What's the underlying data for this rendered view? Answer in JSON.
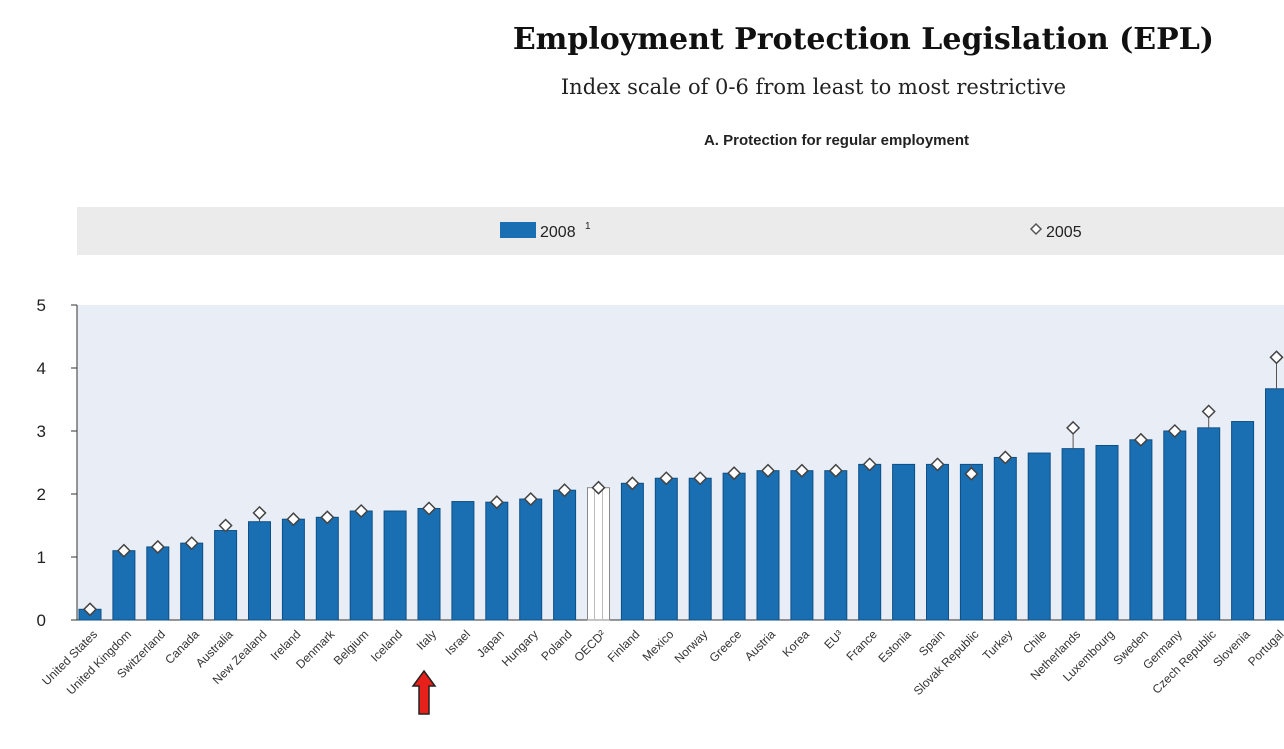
{
  "title": "Employment Protection Legislation (EPL)",
  "subtitle": "Index scale of 0-6 from least to most restrictive",
  "colors": {
    "bar": "#1a6fb3",
    "bar_stroke": "#0d4f86",
    "oecd_bar": "#ffffff",
    "plot_bg": "#e9eef6",
    "legend_bg": "#ebebeb",
    "arrow": "#e8201a"
  },
  "chart_data": {
    "type": "bar",
    "title": "A. Protection for regular employment",
    "legend": {
      "placement": "top",
      "items": [
        {
          "label": "2008",
          "sup": "1",
          "marker": "bar"
        },
        {
          "label": "2005",
          "sup": "",
          "marker": "diamond"
        }
      ]
    },
    "categories": [
      "United States",
      "United Kingdom",
      "Switzerland",
      "Canada",
      "Australia",
      "New Zealand",
      "Ireland",
      "Denmark",
      "Belgium",
      "Iceland",
      "Italy",
      "Israel",
      "Japan",
      "Hungary",
      "Poland",
      "OECD²",
      "Finland",
      "Mexico",
      "Norway",
      "Greece",
      "Austria",
      "Korea",
      "EU³",
      "France",
      "Estonia",
      "Spain",
      "Slovak Republic",
      "Turkey",
      "Chile",
      "Netherlands",
      "Luxembourg",
      "Sweden",
      "Germany",
      "Czech Republic",
      "Slovenia",
      "Portugal"
    ],
    "series": [
      {
        "name": "2008",
        "values": [
          0.17,
          1.1,
          1.16,
          1.22,
          1.42,
          1.56,
          1.6,
          1.63,
          1.73,
          1.73,
          1.77,
          1.88,
          1.87,
          1.92,
          2.06,
          2.1,
          2.17,
          2.25,
          2.25,
          2.33,
          2.37,
          2.37,
          2.37,
          2.47,
          2.47,
          2.47,
          2.47,
          2.58,
          2.65,
          2.72,
          2.77,
          2.86,
          3.0,
          3.05,
          3.15,
          3.67
        ]
      },
      {
        "name": "2005",
        "values": [
          0.17,
          1.1,
          1.16,
          1.22,
          1.5,
          1.7,
          1.6,
          1.63,
          1.73,
          null,
          1.77,
          null,
          1.87,
          1.92,
          2.06,
          2.1,
          2.17,
          2.25,
          2.25,
          2.33,
          2.37,
          2.37,
          2.37,
          2.47,
          null,
          2.47,
          2.32,
          2.58,
          null,
          3.05,
          null,
          2.86,
          3.0,
          3.31,
          null,
          4.17
        ]
      }
    ],
    "highlight": [
      "OECD²"
    ],
    "marker": {
      "category": "Italy",
      "shape": "up-arrow"
    },
    "ylim": [
      0,
      5
    ],
    "yticks": [
      0,
      1,
      2,
      3,
      4,
      5
    ],
    "grid": false
  }
}
